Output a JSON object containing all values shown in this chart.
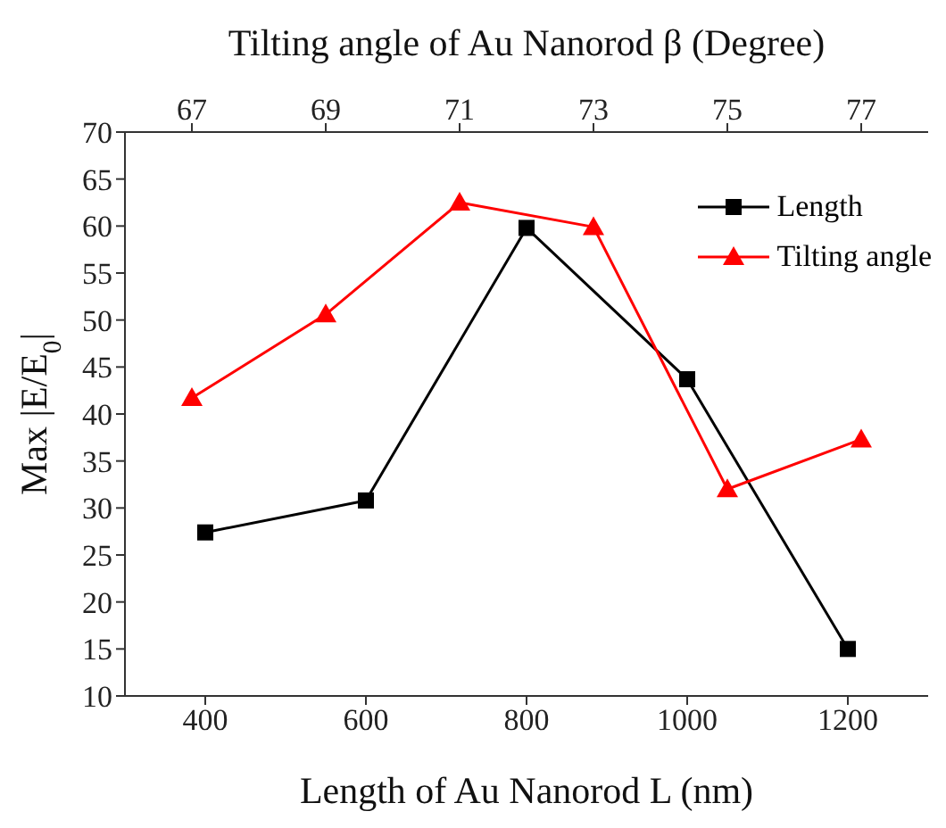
{
  "chart_data": {
    "type": "line",
    "xlabel": "Length of Au Nanorod L (nm)",
    "x2label": "Tilting angle of Au Nanorod β (Degree)",
    "ylabel": "Max |E/E$_{0}$|",
    "xlim": [
      300,
      1300
    ],
    "xticks": [
      400,
      600,
      800,
      1000,
      1200
    ],
    "x2lim": [
      66,
      78
    ],
    "x2ticks": [
      67,
      69,
      71,
      73,
      75,
      77
    ],
    "ylim": [
      10,
      70
    ],
    "yticks": [
      10,
      15,
      20,
      25,
      30,
      35,
      40,
      45,
      50,
      55,
      60,
      65,
      70
    ],
    "grid": false,
    "legend": "top right",
    "line_style": "solid",
    "series": [
      {
        "name": "Length",
        "color": "#000000",
        "marker": "square",
        "x": [
          400,
          600,
          800,
          1000,
          1200
        ],
        "values": [
          27.4,
          30.8,
          59.8,
          43.7,
          15
        ]
      },
      {
        "name": "Tilting angle",
        "color": "#ff0000",
        "marker": "triangle",
        "axis": "x2",
        "x": [
          67,
          69,
          71,
          73,
          75,
          77
        ],
        "values": [
          41.7,
          50.6,
          62.5,
          59.9,
          32,
          37.3
        ]
      }
    ]
  }
}
